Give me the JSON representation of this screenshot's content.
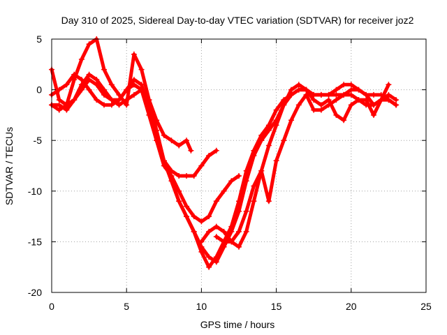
{
  "chart_data": {
    "type": "line",
    "title": "Day 310 of 2025, Sidereal Day-to-day VTEC variation (SDTVAR) for receiver joz2",
    "xlabel": "GPS time / hours",
    "ylabel": "SDTVAR / TECUs",
    "xlim": [
      0,
      25
    ],
    "ylim": [
      -20,
      5
    ],
    "x_ticks": [
      "0",
      "5",
      "10",
      "15",
      "20",
      "25"
    ],
    "y_ticks": [
      "5",
      "0",
      "-5",
      "-10",
      "-15",
      "-20"
    ],
    "x_tick_values": [
      0,
      5,
      10,
      15,
      20,
      25
    ],
    "y_tick_values": [
      5,
      0,
      -5,
      -10,
      -15,
      -20
    ],
    "grid": true,
    "marker": "+",
    "color": "#ff0000",
    "series": [
      {
        "name": "series-1",
        "x": [
          0,
          0.5,
          1,
          1.5,
          2,
          2.5,
          3,
          3.5,
          4,
          4.5,
          5,
          5.5,
          6,
          6.5,
          7,
          7.5,
          8,
          8.5,
          9,
          9.3
        ],
        "y": [
          2,
          -1,
          -1.5,
          1,
          3,
          4.5,
          5,
          2,
          0.5,
          -0.5,
          -1.5,
          3.5,
          2,
          -1,
          -3,
          -4.5,
          -5,
          -5.5,
          -5,
          -6
        ]
      },
      {
        "name": "series-2",
        "x": [
          0,
          0.5,
          1,
          1.5,
          2,
          2.5,
          3,
          3.5,
          4,
          4.5,
          5,
          5.5,
          6,
          6.5,
          7,
          7.5,
          8,
          8.5,
          9,
          9.5,
          10,
          10.5,
          11
        ],
        "y": [
          -1.5,
          -2,
          -1.5,
          -1,
          0.5,
          1.5,
          1,
          0,
          -1,
          -1,
          0,
          0.5,
          0,
          -2,
          -5,
          -7,
          -8,
          -8.5,
          -8.5,
          -8.5,
          -7.5,
          -6.5,
          -6
        ]
      },
      {
        "name": "series-3",
        "x": [
          0,
          0.5,
          1,
          1.5,
          2,
          2.5,
          3,
          3.5,
          4,
          4.5,
          5,
          5.5,
          6,
          6.5,
          7,
          7.5,
          8,
          8.5,
          9,
          9.5,
          10,
          10.5,
          11,
          11.5,
          12,
          12.5
        ],
        "y": [
          -0.5,
          0,
          0.5,
          1.5,
          1,
          0,
          -1,
          -1.5,
          -1.5,
          -1,
          0,
          1,
          0.5,
          -2,
          -5,
          -7.5,
          -8.5,
          -10,
          -11.5,
          -12.5,
          -13,
          -12.5,
          -11,
          -10,
          -9,
          -8.5
        ]
      },
      {
        "name": "series-4",
        "x": [
          0,
          0.5,
          1,
          1.5,
          2,
          2.5,
          3,
          3.5,
          4,
          4.5,
          5,
          5.5,
          6,
          6.5,
          7,
          7.5,
          8,
          8.5,
          9,
          9.5,
          10,
          10.5,
          11,
          11.5,
          12,
          12.5,
          13,
          13.5,
          14,
          14.5,
          15,
          15.5,
          16,
          16.5,
          17,
          17.5,
          18,
          18.5,
          19,
          19.5,
          20,
          20.5,
          21,
          21.5,
          22,
          22.5,
          23
        ],
        "y": [
          -1.5,
          -1.5,
          -2,
          -1,
          0,
          1,
          0.5,
          -0.5,
          -1,
          -1.5,
          -1,
          -0.5,
          0,
          -1,
          -4,
          -7,
          -9,
          -11,
          -12.5,
          -14,
          -15.5,
          -16.5,
          -17,
          -15.5,
          -14,
          -12,
          -9,
          -6.5,
          -5,
          -4,
          -3,
          -1.5,
          -0.5,
          0,
          0,
          -0.5,
          -0.5,
          -0.5,
          -0.5,
          -0.5,
          0,
          0,
          -0.5,
          -0.5,
          -0.5,
          -1,
          -1.5
        ]
      },
      {
        "name": "series-5",
        "x": [
          5.5,
          6,
          6.5,
          7,
          7.5,
          8,
          8.5,
          9,
          9.5,
          10,
          10.5,
          11,
          11.5,
          12,
          12.5,
          13,
          13.5,
          14,
          14.5,
          15,
          15.5,
          16,
          16.5,
          17,
          17.5,
          18,
          18.5,
          19,
          19.5,
          20,
          20.5,
          21,
          21.5,
          22,
          22.5,
          23
        ],
        "y": [
          0.5,
          0,
          -2.5,
          -5,
          -7,
          -9,
          -11,
          -12.5,
          -14,
          -16,
          -17.5,
          -16.5,
          -15,
          -13.5,
          -11,
          -8,
          -6,
          -4.5,
          -3.5,
          -2,
          -1,
          -0.5,
          0,
          0,
          -1,
          -1.5,
          -1,
          -2.5,
          -3,
          -1.5,
          -1,
          -1,
          -2.5,
          -1,
          -0.5,
          -1
        ]
      },
      {
        "name": "series-6",
        "x": [
          10,
          10.5,
          11,
          11.5,
          12,
          12.5,
          13,
          13.5,
          14,
          14.5,
          15,
          15.5,
          16,
          16.5,
          17,
          17.5,
          18,
          18.5,
          19,
          19.5,
          20,
          20.5,
          21,
          21.5,
          22,
          22.5
        ],
        "y": [
          -15,
          -14,
          -13.5,
          -14,
          -15,
          -15.5,
          -14,
          -11,
          -8,
          -5.5,
          -3.5,
          -1.5,
          0,
          0.5,
          0,
          -0.5,
          -0.5,
          -0.5,
          0,
          0.5,
          0.5,
          0,
          -0.5,
          -1.5,
          -1,
          0.5
        ]
      },
      {
        "name": "series-7",
        "x": [
          11,
          11.5,
          12,
          12.5,
          13,
          13.5,
          14,
          14.5,
          15,
          15.5,
          16,
          16.5,
          17,
          17.5,
          18,
          18.5,
          19,
          19.5,
          20,
          20.5,
          21,
          21.5,
          22,
          22.5,
          23
        ],
        "y": [
          -14.5,
          -15,
          -15,
          -14,
          -12,
          -9.5,
          -8,
          -11,
          -7,
          -5,
          -3,
          -1.5,
          -0.5,
          -2,
          -2,
          -1.5,
          -1,
          -0.5,
          -0.5,
          -1,
          -1.5,
          -1.5,
          -1,
          -1,
          -1.5
        ]
      }
    ]
  }
}
